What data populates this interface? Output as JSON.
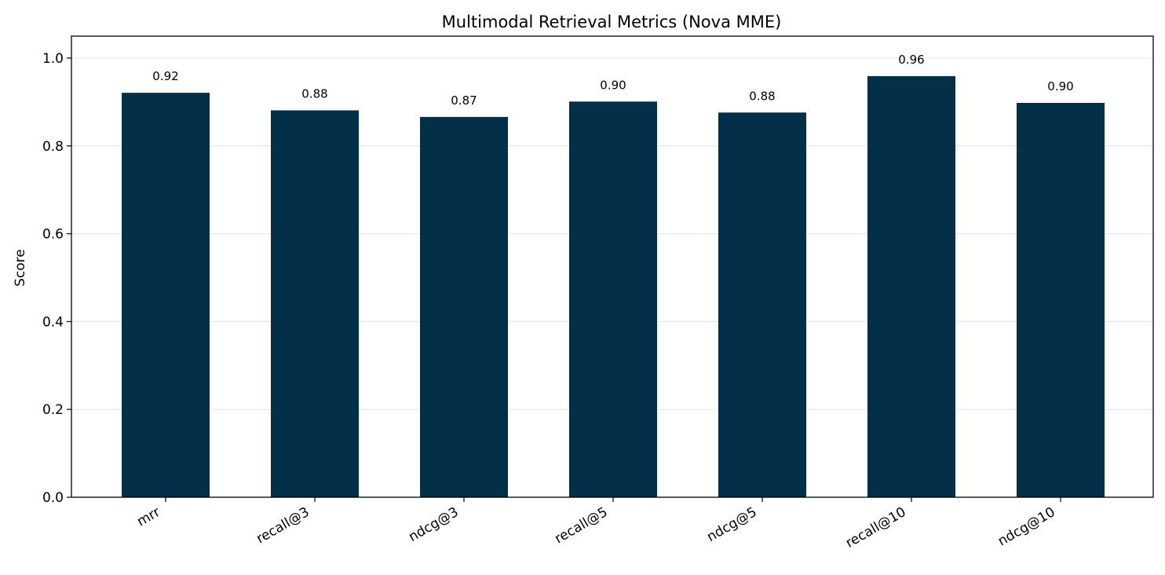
{
  "colors": {
    "bar": "#033048",
    "grid": "#e6e6e6",
    "axis": "#000000",
    "background": "#ffffff"
  },
  "chart_data": {
    "type": "bar",
    "title": "Multimodal Retrieval Metrics (Nova MME)",
    "xlabel": "",
    "ylabel": "Score",
    "ylim": [
      0,
      1.05
    ],
    "grid": "horizontal",
    "categories": [
      "mrr",
      "recall@3",
      "ndcg@3",
      "recall@5",
      "ndcg@5",
      "recall@10",
      "ndcg@10"
    ],
    "values": [
      0.921,
      0.881,
      0.866,
      0.901,
      0.876,
      0.959,
      0.898
    ],
    "data_labels": [
      "0.92",
      "0.88",
      "0.87",
      "0.90",
      "0.88",
      "0.96",
      "0.90"
    ],
    "y_ticks": [
      {
        "value": 0.0,
        "label": "0.0"
      },
      {
        "value": 0.2,
        "label": "0.2"
      },
      {
        "value": 0.4,
        "label": "0.4"
      },
      {
        "value": 0.6,
        "label": "0.6"
      },
      {
        "value": 0.8,
        "label": "0.8"
      },
      {
        "value": 1.0,
        "label": "1.0"
      }
    ]
  }
}
